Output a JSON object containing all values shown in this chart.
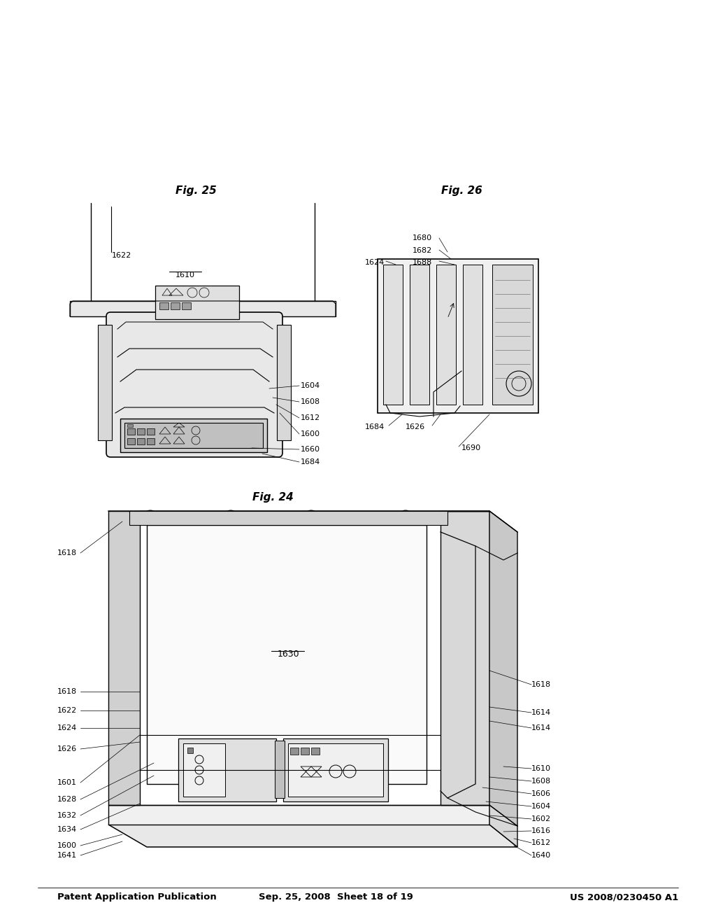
{
  "background_color": "#ffffff",
  "page_width": 10.24,
  "page_height": 13.2,
  "header": {
    "left": "Patent Application Publication",
    "center": "Sep. 25, 2008  Sheet 18 of 19",
    "right": "US 2008/0230450 A1",
    "fontsize": 9.5
  },
  "fig24_caption": "Fig. 24",
  "fig25_caption": "Fig. 25",
  "fig26_caption": "Fig. 26",
  "line_color": "#000000",
  "bg": "#ffffff"
}
